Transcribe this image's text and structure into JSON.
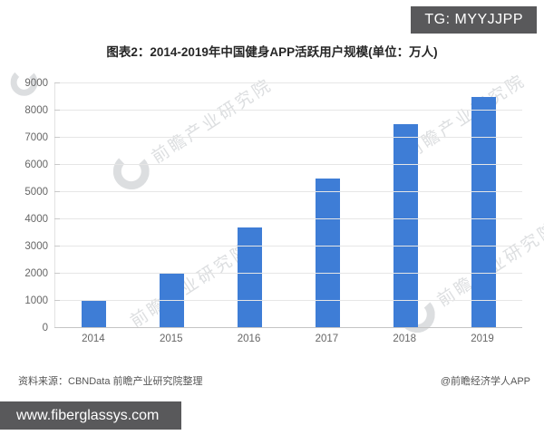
{
  "badge": {
    "text": "TG: MYYJJPP"
  },
  "title": "图表2：2014-2019年中国健身APP活跃用户规模(单位：万人)",
  "chart_data": {
    "type": "bar",
    "title": "图表2：2014-2019年中国健身APP活跃用户规模(单位：万人)",
    "categories": [
      "2014",
      "2015",
      "2016",
      "2017",
      "2018",
      "2019"
    ],
    "values": [
      1000,
      2000,
      3700,
      5500,
      7500,
      8500
    ],
    "unit": "万人",
    "xlabel": "",
    "ylabel": "",
    "ylim": [
      0,
      9000
    ],
    "ytick_step": 1000,
    "grid": true,
    "legend": false,
    "bar_color": "#3e7dd6"
  },
  "watermark": {
    "text": "前瞻产业研究院"
  },
  "footer": {
    "source": "资料来源：CBNData 前瞻产业研究院整理",
    "credit": "@前瞻经济学人APP"
  },
  "bottom_bar": {
    "url": "www.fiberglassys.com"
  },
  "colors": {
    "bar": "#3e7dd6",
    "badge_bg": "#59595b",
    "urlbar_bg": "#59595b",
    "gridline": "#e6e6e6",
    "axis": "#c4c4c4",
    "tick_text": "#666666"
  }
}
